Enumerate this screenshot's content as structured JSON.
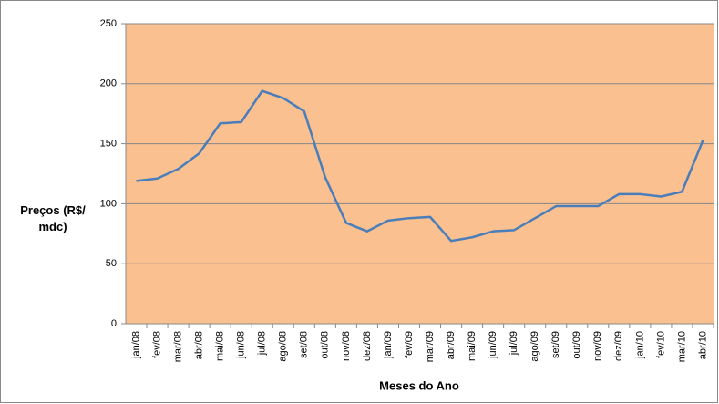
{
  "chart_data": {
    "type": "line",
    "y_label": "Preços (R$/ mdc)",
    "x_label": "Meses do Ano",
    "categories": [
      "jan/08",
      "fev/08",
      "mar/08",
      "abr/08",
      "mai/08",
      "jun/08",
      "jul/08",
      "ago/08",
      "set/08",
      "out/08",
      "nov/08",
      "dez/08",
      "jan/09",
      "fev/09",
      "mar/09",
      "abr/09",
      "mai/09",
      "jun/09",
      "jul/09",
      "ago/09",
      "set/09",
      "out/09",
      "nov/09",
      "dez/09",
      "jan/10",
      "fev/10",
      "mar/10",
      "abr/10"
    ],
    "values": [
      119,
      121,
      129,
      142,
      167,
      168,
      194,
      188,
      177,
      122,
      84,
      77,
      86,
      88,
      89,
      69,
      72,
      77,
      78,
      88,
      98,
      98,
      98,
      108,
      108,
      106,
      110,
      153
    ],
    "color": "#4a7ebb",
    "plot_background": "#fac090",
    "ylim": [
      0,
      250
    ],
    "yticks": [
      0,
      50,
      100,
      150,
      200,
      250
    ],
    "grid": true
  }
}
